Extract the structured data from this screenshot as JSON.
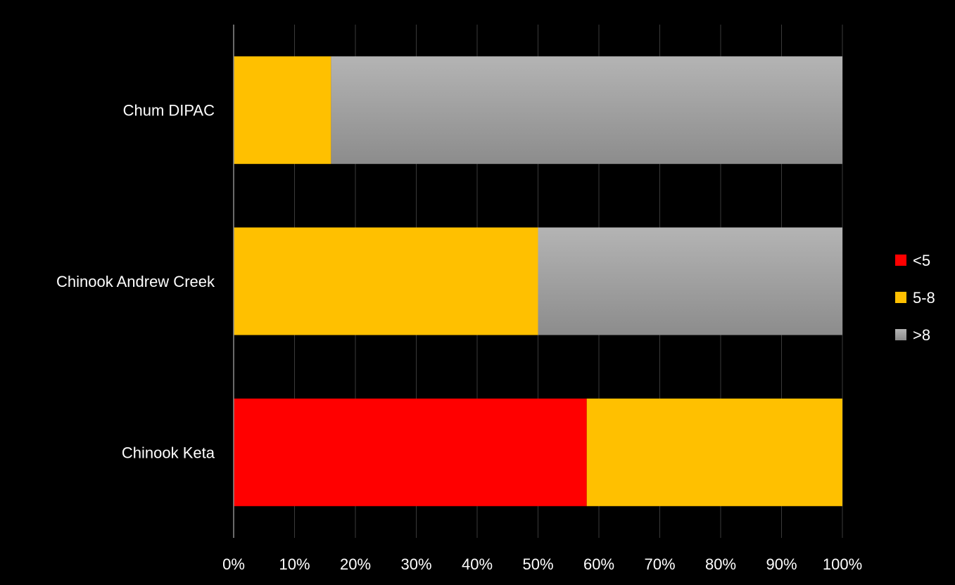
{
  "chart_data": {
    "type": "bar",
    "orientation": "horizontal",
    "stacked": "percent",
    "categories": [
      "Chinook Keta",
      "Chinook Andrew Creek",
      "Chum DIPAC"
    ],
    "series": [
      {
        "name": "<5",
        "color": "#ff0000",
        "values": [
          58,
          0,
          0
        ]
      },
      {
        "name": "5-8",
        "color": "#ffc000",
        "values": [
          42,
          50,
          16
        ]
      },
      {
        "name": ">8",
        "color": "#a6a6a6",
        "values": [
          0,
          50,
          84
        ]
      }
    ],
    "xlim": [
      0,
      100
    ],
    "x_ticks": [
      "0%",
      "10%",
      "20%",
      "30%",
      "40%",
      "50%",
      "60%",
      "70%",
      "80%",
      "90%",
      "100%"
    ],
    "grid": true,
    "legend_position": "right",
    "background": "#000000"
  }
}
